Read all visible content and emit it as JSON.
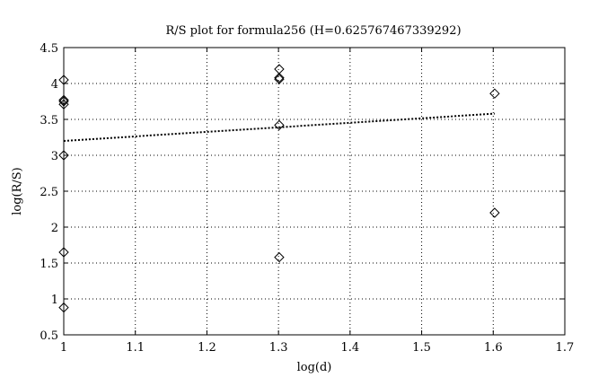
{
  "chart_data": {
    "type": "scatter",
    "title": "R/S plot for formula256 (H=0.625767467339292)",
    "xlabel": "log(d)",
    "ylabel": "log(R/S)",
    "xlim": [
      1,
      1.7
    ],
    "ylim": [
      0.5,
      4.5
    ],
    "xticks": [
      "1",
      "1.1",
      "1.2",
      "1.3",
      "1.4",
      "1.5",
      "1.6",
      "1.7"
    ],
    "yticks": [
      "0.5",
      "1",
      "1.5",
      "2",
      "2.5",
      "3",
      "3.5",
      "4",
      "4.5"
    ],
    "grid": true,
    "marker": "diamond",
    "points": [
      {
        "x": 1.0,
        "y": 4.05
      },
      {
        "x": 1.0,
        "y": 3.77
      },
      {
        "x": 1.0,
        "y": 3.75
      },
      {
        "x": 1.0,
        "y": 3.71
      },
      {
        "x": 1.0,
        "y": 3.0
      },
      {
        "x": 1.0,
        "y": 1.65
      },
      {
        "x": 1.0,
        "y": 0.88
      },
      {
        "x": 1.301,
        "y": 4.2
      },
      {
        "x": 1.301,
        "y": 4.08
      },
      {
        "x": 1.301,
        "y": 4.06
      },
      {
        "x": 1.301,
        "y": 3.42
      },
      {
        "x": 1.301,
        "y": 1.58
      },
      {
        "x": 1.602,
        "y": 3.86
      },
      {
        "x": 1.602,
        "y": 2.2
      }
    ],
    "fit_line": {
      "style": "dotted",
      "points": [
        {
          "x": 1.0,
          "y": 3.2
        },
        {
          "x": 1.602,
          "y": 3.58
        }
      ]
    }
  }
}
